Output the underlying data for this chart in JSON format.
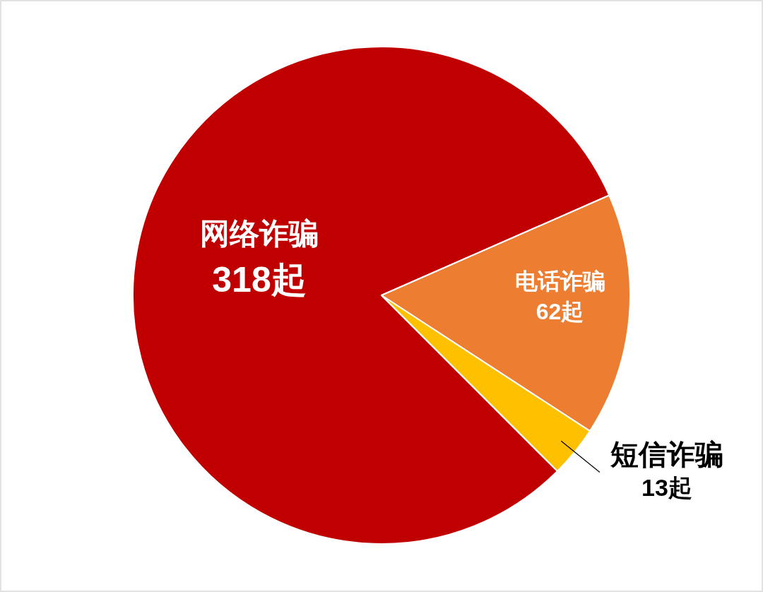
{
  "chart_data": {
    "type": "pie",
    "categories": [
      "网络诈骗",
      "电话诈骗",
      "短信诈骗"
    ],
    "values": [
      318,
      62,
      13
    ],
    "colors": [
      "#c00000",
      "#ed7d31",
      "#ffc000"
    ],
    "value_labels": [
      "318起",
      "62起",
      "13起"
    ],
    "legend": false
  }
}
